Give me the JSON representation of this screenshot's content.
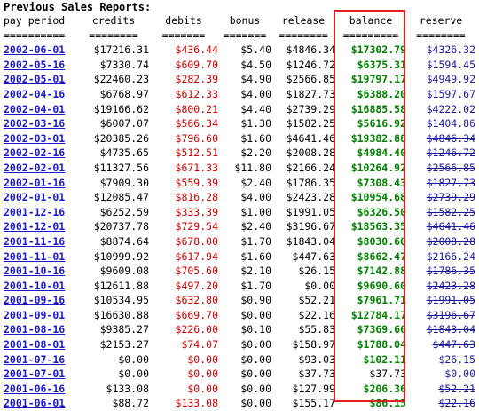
{
  "title": "Previous Sales Reports:",
  "headers": [
    "pay period",
    "credits",
    "debits",
    "bonus",
    "release",
    "balance",
    "reserve"
  ],
  "separators": [
    "==========",
    "========",
    "=======",
    "=======",
    "========",
    "=========",
    "========"
  ],
  "rows": [
    {
      "period": "2002-06-01",
      "credits": "$17216.31",
      "debits": "$436.44",
      "bonus": "$5.40",
      "release": "$4846.34",
      "balance": "$17302.79",
      "balance_style": "pos",
      "reserve": "$4326.32",
      "reserve_struck": false
    },
    {
      "period": "2002-05-16",
      "credits": "$7330.74",
      "debits": "$609.70",
      "bonus": "$4.50",
      "release": "$1246.72",
      "balance": "$6375.31",
      "balance_style": "pos",
      "reserve": "$1594.45",
      "reserve_struck": false
    },
    {
      "period": "2002-05-01",
      "credits": "$22460.23",
      "debits": "$282.39",
      "bonus": "$4.90",
      "release": "$2566.85",
      "balance": "$19797.17",
      "balance_style": "pos",
      "reserve": "$4949.92",
      "reserve_struck": false
    },
    {
      "period": "2002-04-16",
      "credits": "$6768.97",
      "debits": "$612.33",
      "bonus": "$4.00",
      "release": "$1827.73",
      "balance": "$6388.20",
      "balance_style": "pos",
      "reserve": "$1597.67",
      "reserve_struck": false
    },
    {
      "period": "2002-04-01",
      "credits": "$19166.62",
      "debits": "$800.21",
      "bonus": "$4.40",
      "release": "$2739.29",
      "balance": "$16885.58",
      "balance_style": "pos",
      "reserve": "$4222.02",
      "reserve_struck": false
    },
    {
      "period": "2002-03-16",
      "credits": "$6007.07",
      "debits": "$566.34",
      "bonus": "$1.30",
      "release": "$1582.25",
      "balance": "$5616.92",
      "balance_style": "pos",
      "reserve": "$1404.86",
      "reserve_struck": false
    },
    {
      "period": "2002-03-01",
      "credits": "$20385.26",
      "debits": "$796.60",
      "bonus": "$1.60",
      "release": "$4641.46",
      "balance": "$19382.88",
      "balance_style": "pos",
      "reserve": "$4846.34",
      "reserve_struck": true
    },
    {
      "period": "2002-02-16",
      "credits": "$4735.65",
      "debits": "$512.51",
      "bonus": "$2.20",
      "release": "$2008.28",
      "balance": "$4984.40",
      "balance_style": "pos",
      "reserve": "$1246.72",
      "reserve_struck": true
    },
    {
      "period": "2002-02-01",
      "credits": "$11327.56",
      "debits": "$671.33",
      "bonus": "$11.80",
      "release": "$2166.24",
      "balance": "$10264.92",
      "balance_style": "pos",
      "reserve": "$2566.85",
      "reserve_struck": true
    },
    {
      "period": "2002-01-16",
      "credits": "$7909.30",
      "debits": "$559.39",
      "bonus": "$2.40",
      "release": "$1786.35",
      "balance": "$7308.43",
      "balance_style": "pos",
      "reserve": "$1827.73",
      "reserve_struck": true
    },
    {
      "period": "2002-01-01",
      "credits": "$12085.47",
      "debits": "$816.28",
      "bonus": "$4.00",
      "release": "$2423.28",
      "balance": "$10954.68",
      "balance_style": "pos",
      "reserve": "$2739.29",
      "reserve_struck": true
    },
    {
      "period": "2001-12-16",
      "credits": "$6252.59",
      "debits": "$333.39",
      "bonus": "$1.00",
      "release": "$1991.05",
      "balance": "$6326.50",
      "balance_style": "pos",
      "reserve": "$1582.25",
      "reserve_struck": true
    },
    {
      "period": "2001-12-01",
      "credits": "$20737.78",
      "debits": "$729.54",
      "bonus": "$2.40",
      "release": "$3196.67",
      "balance": "$18563.35",
      "balance_style": "pos",
      "reserve": "$4641.46",
      "reserve_struck": true
    },
    {
      "period": "2001-11-16",
      "credits": "$8874.64",
      "debits": "$678.00",
      "bonus": "$1.70",
      "release": "$1843.04",
      "balance": "$8030.60",
      "balance_style": "pos",
      "reserve": "$2008.28",
      "reserve_struck": true
    },
    {
      "period": "2001-11-01",
      "credits": "$10999.92",
      "debits": "$617.94",
      "bonus": "$1.60",
      "release": "$447.63",
      "balance": "$8662.47",
      "balance_style": "pos",
      "reserve": "$2166.24",
      "reserve_struck": true
    },
    {
      "period": "2001-10-16",
      "credits": "$9609.08",
      "debits": "$705.60",
      "bonus": "$2.10",
      "release": "$26.15",
      "balance": "$7142.88",
      "balance_style": "pos",
      "reserve": "$1786.35",
      "reserve_struck": true
    },
    {
      "period": "2001-10-01",
      "credits": "$12611.88",
      "debits": "$497.20",
      "bonus": "$1.70",
      "release": "$0.00",
      "balance": "$9690.60",
      "balance_style": "pos",
      "reserve": "$2423.28",
      "reserve_struck": true
    },
    {
      "period": "2001-09-16",
      "credits": "$10534.95",
      "debits": "$632.80",
      "bonus": "$0.90",
      "release": "$52.21",
      "balance": "$7961.71",
      "balance_style": "pos",
      "reserve": "$1991.05",
      "reserve_struck": true
    },
    {
      "period": "2001-09-01",
      "credits": "$16630.88",
      "debits": "$669.70",
      "bonus": "$0.00",
      "release": "$22.16",
      "balance": "$12784.17",
      "balance_style": "pos",
      "reserve": "$3196.67",
      "reserve_struck": true
    },
    {
      "period": "2001-08-16",
      "credits": "$9385.27",
      "debits": "$226.00",
      "bonus": "$0.10",
      "release": "$55.83",
      "balance": "$7369.66",
      "balance_style": "pos",
      "reserve": "$1843.04",
      "reserve_struck": true
    },
    {
      "period": "2001-08-01",
      "credits": "$2153.27",
      "debits": "$74.07",
      "bonus": "$0.00",
      "release": "$158.97",
      "balance": "$1788.04",
      "balance_style": "pos",
      "reserve": "$447.63",
      "reserve_struck": true
    },
    {
      "period": "2001-07-16",
      "credits": "$0.00",
      "debits": "$0.00",
      "bonus": "$0.00",
      "release": "$93.03",
      "balance": "$102.11",
      "balance_style": "pos",
      "reserve": "$26.15",
      "reserve_struck": true
    },
    {
      "period": "2001-07-01",
      "credits": "$0.00",
      "debits": "$0.00",
      "bonus": "$0.00",
      "release": "$37.73",
      "balance": "$37.73",
      "balance_style": "plain",
      "reserve": "$0.00",
      "reserve_struck": false
    },
    {
      "period": "2001-06-16",
      "credits": "$133.08",
      "debits": "$0.00",
      "bonus": "$0.00",
      "release": "$127.99",
      "balance": "$206.36",
      "balance_style": "pos",
      "reserve": "$52.21",
      "reserve_struck": true
    },
    {
      "period": "2001-06-01",
      "credits": "$88.72",
      "debits": "$133.08",
      "bonus": "$0.00",
      "release": "$155.17",
      "balance": "$86.15",
      "balance_style": "pos",
      "reserve": "$22.16",
      "reserve_struck": true
    }
  ],
  "colors": {
    "link": "#1a1acc",
    "debit": "#cc0000",
    "balance_positive": "#008000",
    "reserve": "#1a1a99",
    "highlight_box": "#e02020"
  }
}
